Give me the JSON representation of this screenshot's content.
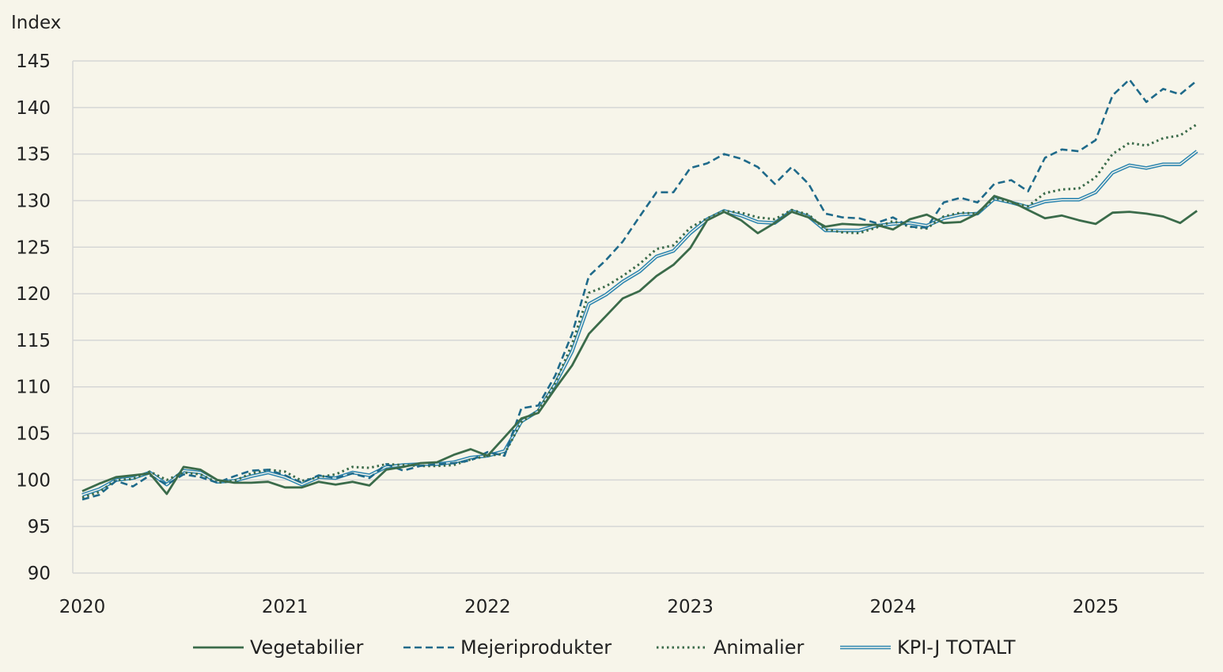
{
  "chart_data": {
    "type": "line",
    "ylabel": "Index",
    "ylim": [
      90,
      145
    ],
    "y_ticks": [
      "90",
      "95",
      "100",
      "105",
      "110",
      "115",
      "120",
      "125",
      "130",
      "135",
      "140",
      "145"
    ],
    "x_tick_labels": [
      "2020",
      "2021",
      "2022",
      "2023",
      "2024",
      "2025"
    ],
    "grid": "horizontal",
    "legend_position": "bottom",
    "x": [
      "2020-01",
      "2020-02",
      "2020-03",
      "2020-04",
      "2020-05",
      "2020-06",
      "2020-07",
      "2020-08",
      "2020-09",
      "2020-10",
      "2020-11",
      "2020-12",
      "2021-01",
      "2021-02",
      "2021-03",
      "2021-04",
      "2021-05",
      "2021-06",
      "2021-07",
      "2021-08",
      "2021-09",
      "2021-10",
      "2021-11",
      "2021-12",
      "2022-01",
      "2022-02",
      "2022-03",
      "2022-04",
      "2022-05",
      "2022-06",
      "2022-07",
      "2022-08",
      "2022-09",
      "2022-10",
      "2022-11",
      "2022-12",
      "2023-01",
      "2023-02",
      "2023-03",
      "2023-04",
      "2023-05",
      "2023-06",
      "2023-07",
      "2023-08",
      "2023-09",
      "2023-10",
      "2023-11",
      "2023-12",
      "2024-01",
      "2024-02",
      "2024-03",
      "2024-04",
      "2024-05",
      "2024-06",
      "2024-07",
      "2024-08",
      "2024-09",
      "2024-10",
      "2024-11",
      "2024-12",
      "2025-01",
      "2025-02",
      "2025-03",
      "2025-04",
      "2025-05",
      "2025-06",
      "2025-07"
    ],
    "series": [
      {
        "name": "Vegetabilier",
        "color": "#3b6b4a",
        "style": "solid",
        "values": [
          98.8,
          99.6,
          100.3,
          100.5,
          100.7,
          98.5,
          101.4,
          101.1,
          100.0,
          99.7,
          99.7,
          99.8,
          99.2,
          99.2,
          99.8,
          99.5,
          99.8,
          99.4,
          101.1,
          101.4,
          101.8,
          101.9,
          102.7,
          103.3,
          102.6,
          104.6,
          106.6,
          107.2,
          109.8,
          112.3,
          115.7,
          117.6,
          119.5,
          120.3,
          121.9,
          123.1,
          124.9,
          127.9,
          128.8,
          127.9,
          126.5,
          127.6,
          128.8,
          128.2,
          127.2,
          127.5,
          127.4,
          127.4,
          126.9,
          128.0,
          128.5,
          127.6,
          127.7,
          128.6,
          130.5,
          129.9,
          129.0,
          128.1,
          128.4,
          127.9,
          127.5,
          128.7,
          128.8,
          128.6,
          128.3,
          127.6,
          128.9
        ]
      },
      {
        "name": "Mejeriprodukter",
        "color": "#1f6a8a",
        "style": "dashed",
        "values": [
          97.9,
          98.4,
          99.9,
          99.3,
          100.5,
          99.5,
          100.6,
          100.3,
          99.7,
          100.4,
          101.0,
          101.1,
          100.5,
          99.7,
          100.5,
          100.2,
          100.7,
          100.2,
          101.7,
          101.0,
          101.5,
          101.7,
          101.8,
          102.1,
          103.0,
          102.6,
          107.7,
          108.0,
          111.2,
          115.7,
          121.9,
          123.6,
          125.6,
          128.3,
          130.9,
          130.9,
          133.5,
          134.0,
          135.0,
          134.5,
          133.6,
          131.8,
          133.6,
          131.8,
          128.6,
          128.2,
          128.1,
          127.6,
          128.2,
          127.2,
          127.1,
          129.8,
          130.3,
          129.8,
          131.8,
          132.2,
          131.0,
          134.6,
          135.5,
          135.3,
          136.5,
          141.3,
          143.0,
          140.6,
          142.0,
          141.4,
          142.9
        ]
      },
      {
        "name": "Animalier",
        "color": "#3b6b4a",
        "style": "dotted",
        "values": [
          98.1,
          98.7,
          100.0,
          100.1,
          100.9,
          100.0,
          100.8,
          100.6,
          99.7,
          99.9,
          100.7,
          101.1,
          100.9,
          99.9,
          100.3,
          100.6,
          101.4,
          101.3,
          101.7,
          101.6,
          101.5,
          101.5,
          101.6,
          102.2,
          102.6,
          102.8,
          106.2,
          107.5,
          110.4,
          114.6,
          120.1,
          120.8,
          121.9,
          123.2,
          124.8,
          125.2,
          127.1,
          128.1,
          128.9,
          128.7,
          128.2,
          128.0,
          129.0,
          128.5,
          126.9,
          126.6,
          126.5,
          127.1,
          127.8,
          127.2,
          127.0,
          128.3,
          128.7,
          128.6,
          130.3,
          129.8,
          129.4,
          130.8,
          131.2,
          131.3,
          132.5,
          135.0,
          136.2,
          135.9,
          136.7,
          137.0,
          138.2
        ]
      },
      {
        "name": "KPI-J TOTALT",
        "color": "#2e86b0",
        "style": "double",
        "values": [
          98.4,
          99.0,
          100.0,
          100.2,
          100.8,
          99.5,
          101.0,
          100.8,
          99.8,
          99.9,
          100.4,
          100.8,
          100.3,
          99.5,
          100.3,
          100.2,
          100.8,
          100.5,
          101.4,
          101.6,
          101.7,
          101.7,
          101.9,
          102.4,
          102.6,
          103.1,
          106.3,
          107.4,
          110.3,
          113.8,
          118.9,
          119.9,
          121.3,
          122.4,
          124.0,
          124.6,
          126.5,
          128.0,
          128.9,
          128.4,
          127.7,
          127.6,
          128.9,
          128.3,
          126.8,
          126.8,
          126.8,
          127.3,
          127.5,
          127.6,
          127.3,
          128.1,
          128.5,
          128.6,
          130.2,
          129.8,
          129.3,
          129.9,
          130.1,
          130.1,
          130.9,
          133.0,
          133.8,
          133.5,
          133.9,
          133.9,
          135.3
        ]
      }
    ]
  }
}
